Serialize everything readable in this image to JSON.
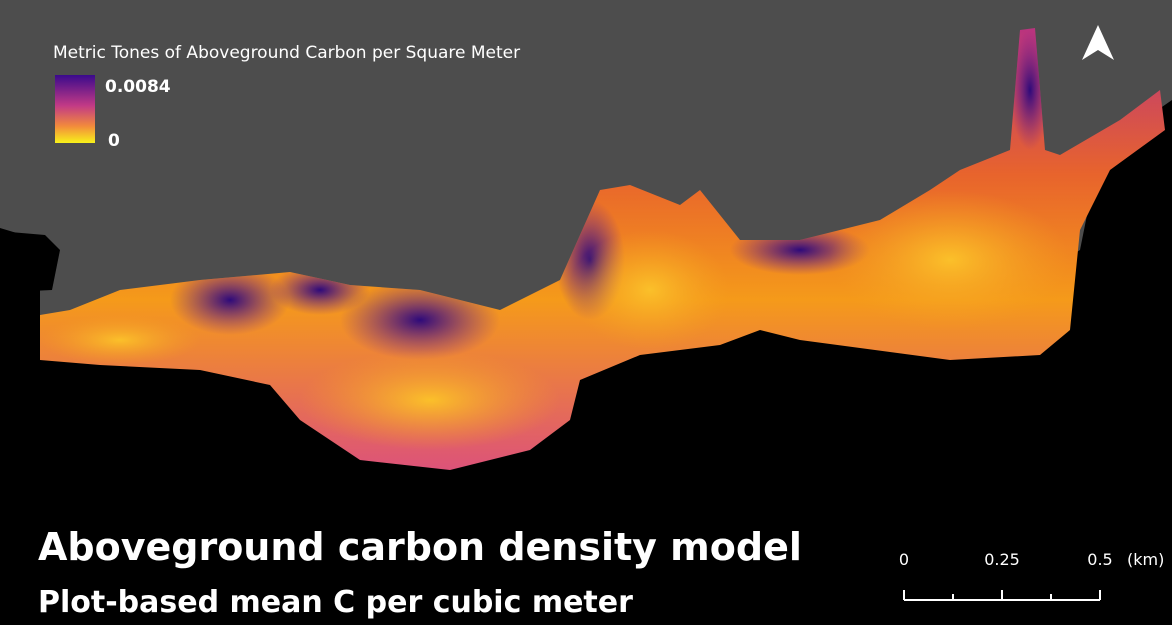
{
  "legend": {
    "title": "Metric Tones of Aboveground Carbon per Square Meter",
    "max": 0.0084,
    "min": 0
  },
  "title": "Aboveground carbon density model",
  "subtitle": "Plot-based mean C per cubic meter",
  "scale_bar": {
    "ticks": [
      0,
      0.25,
      0.5
    ],
    "unit": "(km)"
  }
}
